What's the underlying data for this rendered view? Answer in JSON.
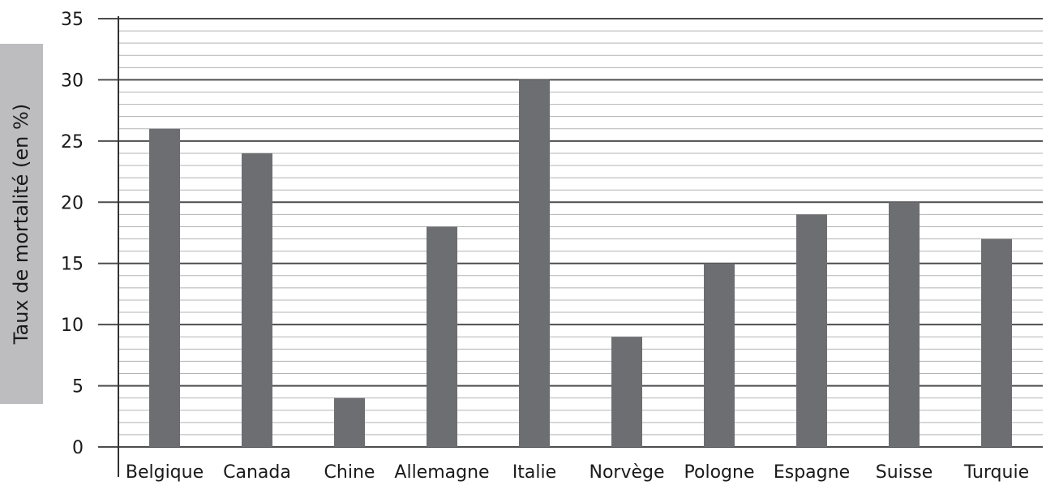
{
  "chart_data": {
    "type": "bar",
    "ylabel": "Taux de mortalité (en %)",
    "xlabel": "",
    "title": "",
    "categories": [
      "Belgique",
      "Canada",
      "Chine",
      "Allemagne",
      "Italie",
      "Norvège",
      "Pologne",
      "Espagne",
      "Suisse",
      "Turquie"
    ],
    "values": [
      26,
      24,
      4,
      18,
      30,
      9,
      15,
      19,
      20,
      17
    ],
    "ylim": [
      0,
      35
    ],
    "yticks": [
      0,
      5,
      10,
      15,
      20,
      25,
      30,
      35
    ],
    "minor_grid_step": 1,
    "grid": true,
    "legend": "none",
    "colors": {
      "bar": "#6d6e71",
      "major_grid": "#4d4d4f",
      "minor_grid": "#b3b3b3",
      "label_box": "#bdbdbf"
    }
  }
}
